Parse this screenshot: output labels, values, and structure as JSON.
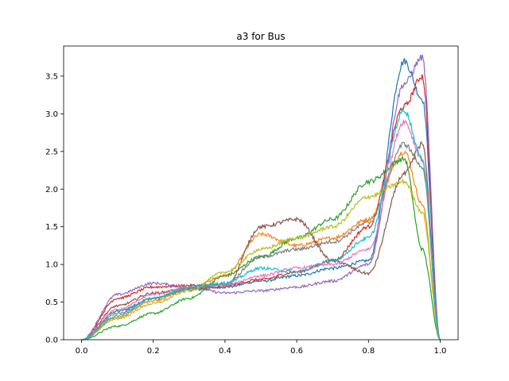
{
  "chart_data": {
    "type": "line",
    "title": "a3 for Bus",
    "xlabel": "",
    "ylabel": "",
    "xlim": [
      -0.05,
      1.05
    ],
    "ylim": [
      0.0,
      3.9
    ],
    "xticks": [
      "0.0",
      "0.2",
      "0.4",
      "0.6",
      "0.8",
      "1.0"
    ],
    "yticks": [
      "0.0",
      "0.5",
      "1.0",
      "1.5",
      "2.0",
      "2.5",
      "3.0",
      "3.5"
    ],
    "grid": false,
    "legend": "none",
    "x": [
      0.0,
      0.1,
      0.2,
      0.3,
      0.4,
      0.5,
      0.6,
      0.7,
      0.8,
      0.9,
      0.95,
      1.0
    ],
    "series": [
      {
        "color": "#1f77b4",
        "values": [
          0.0,
          0.38,
          0.55,
          0.66,
          0.7,
          0.78,
          0.85,
          0.95,
          1.05,
          3.7,
          3.2,
          0.0
        ]
      },
      {
        "color": "#ff7f0e",
        "values": [
          0.0,
          0.3,
          0.52,
          0.68,
          0.85,
          1.4,
          1.25,
          1.35,
          1.6,
          2.5,
          1.8,
          0.0
        ]
      },
      {
        "color": "#2ca02c",
        "values": [
          0.0,
          0.18,
          0.35,
          0.55,
          0.85,
          1.1,
          1.35,
          1.6,
          2.1,
          2.4,
          1.2,
          0.0
        ]
      },
      {
        "color": "#d62728",
        "values": [
          0.0,
          0.55,
          0.7,
          0.72,
          0.72,
          0.8,
          0.9,
          1.05,
          1.5,
          3.1,
          3.5,
          0.0
        ]
      },
      {
        "color": "#9467bd",
        "values": [
          0.0,
          0.6,
          0.75,
          0.7,
          0.62,
          0.65,
          0.7,
          0.78,
          1.0,
          3.4,
          3.75,
          0.0
        ]
      },
      {
        "color": "#8c564b",
        "values": [
          0.0,
          0.45,
          0.62,
          0.68,
          0.7,
          1.5,
          1.6,
          1.05,
          0.88,
          2.2,
          2.6,
          0.0
        ]
      },
      {
        "color": "#e377c2",
        "values": [
          0.0,
          0.4,
          0.6,
          0.7,
          0.72,
          0.85,
          0.95,
          1.0,
          1.2,
          2.9,
          2.4,
          0.0
        ]
      },
      {
        "color": "#7f7f7f",
        "values": [
          0.0,
          0.35,
          0.55,
          0.68,
          0.75,
          1.1,
          1.2,
          1.3,
          1.55,
          2.6,
          2.3,
          0.0
        ]
      },
      {
        "color": "#bcbd22",
        "values": [
          0.0,
          0.28,
          0.48,
          0.65,
          0.9,
          1.2,
          1.35,
          1.5,
          1.9,
          2.1,
          1.7,
          0.0
        ]
      },
      {
        "color": "#17becf",
        "values": [
          0.0,
          0.32,
          0.55,
          0.7,
          0.75,
          0.95,
          0.9,
          1.05,
          1.35,
          3.05,
          2.4,
          0.0
        ]
      }
    ]
  }
}
